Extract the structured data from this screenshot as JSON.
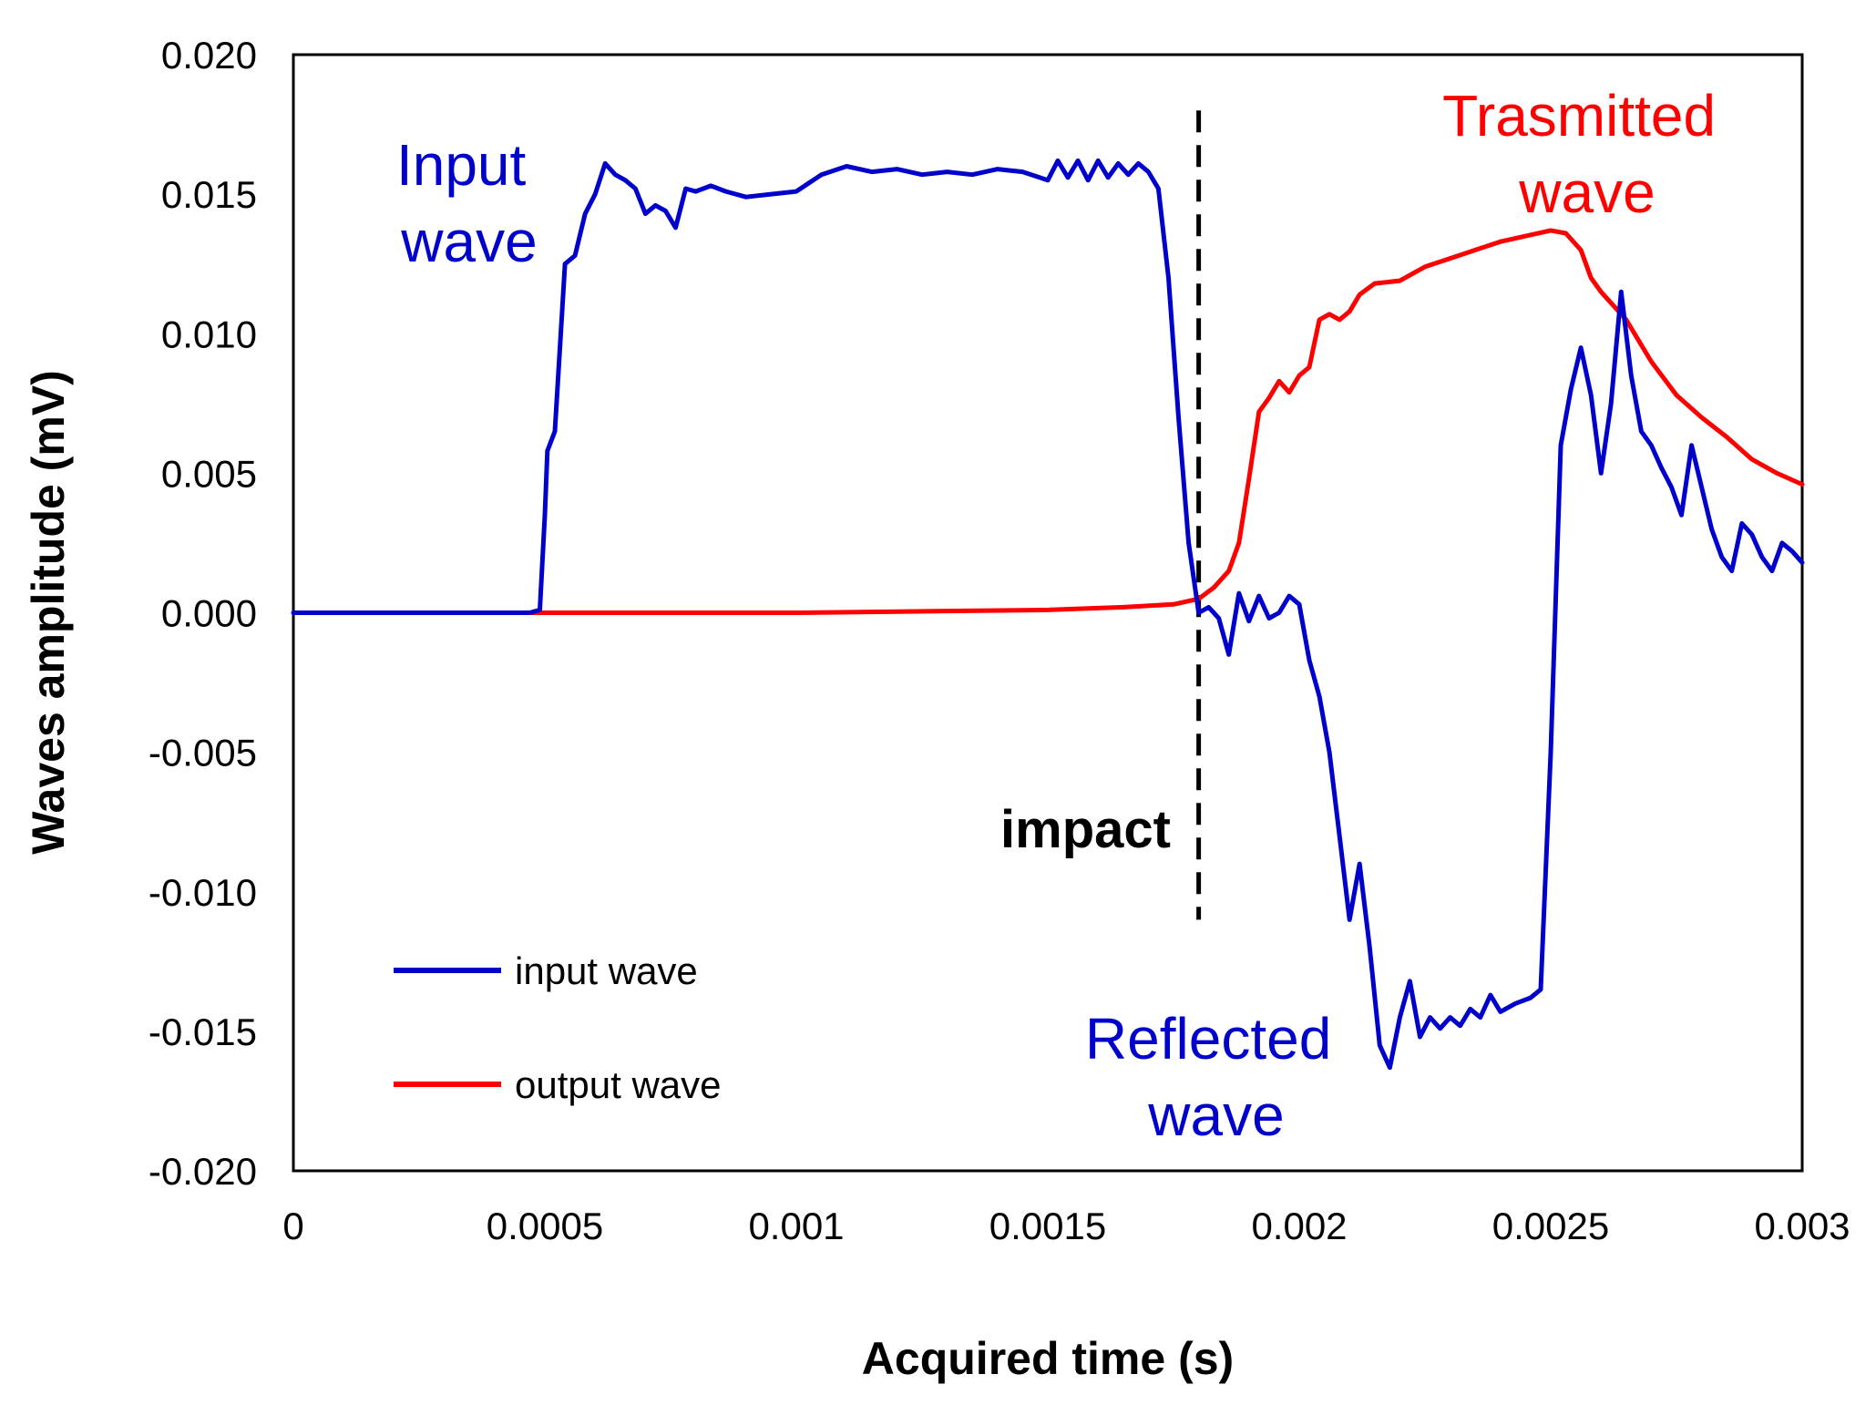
{
  "chart_data": {
    "type": "line",
    "xlabel": "Acquired time (s)",
    "ylabel": "Waves amplitude (mV)",
    "xlim": [
      0,
      0.003
    ],
    "ylim": [
      -0.02,
      0.02
    ],
    "x_ticks": [
      "0",
      "0.0005",
      "0.001",
      "0.0015",
      "0.002",
      "0.0025",
      "0.003"
    ],
    "y_ticks": [
      "0.020",
      "0.015",
      "0.010",
      "0.005",
      "0.000",
      "-0.005",
      "-0.010",
      "-0.015",
      "-0.020"
    ],
    "x_tick_values": [
      0,
      0.0005,
      0.001,
      0.0015,
      0.002,
      0.0025,
      0.003
    ],
    "y_tick_values": [
      0.02,
      0.015,
      0.01,
      0.005,
      0,
      -0.005,
      -0.01,
      -0.015,
      -0.02
    ],
    "grid": false,
    "legend_position": "bottom-left",
    "series": [
      {
        "name": "input wave",
        "color": "#0000CC",
        "points": [
          [
            0,
            0
          ],
          [
            0.00047,
            0
          ],
          [
            0.00049,
            0.0001
          ],
          [
            0.0005,
            0.0035
          ],
          [
            0.000505,
            0.0058
          ],
          [
            0.00052,
            0.0065
          ],
          [
            0.00054,
            0.0125
          ],
          [
            0.00056,
            0.0128
          ],
          [
            0.00058,
            0.0143
          ],
          [
            0.0006,
            0.015
          ],
          [
            0.00062,
            0.0161
          ],
          [
            0.00064,
            0.0157
          ],
          [
            0.00066,
            0.0155
          ],
          [
            0.00068,
            0.0152
          ],
          [
            0.0007,
            0.0143
          ],
          [
            0.00072,
            0.0146
          ],
          [
            0.00074,
            0.0144
          ],
          [
            0.00076,
            0.0138
          ],
          [
            0.00078,
            0.0152
          ],
          [
            0.0008,
            0.0151
          ],
          [
            0.00083,
            0.0153
          ],
          [
            0.00086,
            0.0151
          ],
          [
            0.0009,
            0.0149
          ],
          [
            0.00095,
            0.015
          ],
          [
            0.001,
            0.0151
          ],
          [
            0.00105,
            0.0157
          ],
          [
            0.0011,
            0.016
          ],
          [
            0.00115,
            0.0158
          ],
          [
            0.0012,
            0.0159
          ],
          [
            0.00125,
            0.0157
          ],
          [
            0.0013,
            0.0158
          ],
          [
            0.00135,
            0.0157
          ],
          [
            0.0014,
            0.0159
          ],
          [
            0.00145,
            0.0158
          ],
          [
            0.0015,
            0.0155
          ],
          [
            0.00152,
            0.0162
          ],
          [
            0.00154,
            0.0156
          ],
          [
            0.00156,
            0.0162
          ],
          [
            0.00158,
            0.0155
          ],
          [
            0.0016,
            0.0162
          ],
          [
            0.00162,
            0.0156
          ],
          [
            0.00164,
            0.0161
          ],
          [
            0.00166,
            0.0157
          ],
          [
            0.00168,
            0.0161
          ],
          [
            0.0017,
            0.0158
          ],
          [
            0.00172,
            0.0152
          ],
          [
            0.00174,
            0.012
          ],
          [
            0.00176,
            0.007
          ],
          [
            0.00178,
            0.0025
          ],
          [
            0.0018,
            0
          ],
          [
            0.00182,
            0.0002
          ],
          [
            0.00184,
            -0.0002
          ],
          [
            0.00186,
            -0.0015
          ],
          [
            0.00188,
            0.0007
          ],
          [
            0.0019,
            -0.0003
          ],
          [
            0.00192,
            0.0006
          ],
          [
            0.00194,
            -0.0002
          ],
          [
            0.00196,
            0
          ],
          [
            0.00198,
            0.0006
          ],
          [
            0.002,
            0.0003
          ],
          [
            0.00202,
            -0.0017
          ],
          [
            0.00204,
            -0.003
          ],
          [
            0.00206,
            -0.005
          ],
          [
            0.00208,
            -0.008
          ],
          [
            0.0021,
            -0.011
          ],
          [
            0.00212,
            -0.009
          ],
          [
            0.00214,
            -0.012
          ],
          [
            0.00216,
            -0.0155
          ],
          [
            0.00218,
            -0.0163
          ],
          [
            0.0022,
            -0.0145
          ],
          [
            0.00222,
            -0.0132
          ],
          [
            0.00224,
            -0.0152
          ],
          [
            0.00226,
            -0.0145
          ],
          [
            0.00228,
            -0.0149
          ],
          [
            0.0023,
            -0.0145
          ],
          [
            0.00232,
            -0.0148
          ],
          [
            0.00234,
            -0.0142
          ],
          [
            0.00236,
            -0.0145
          ],
          [
            0.00238,
            -0.0137
          ],
          [
            0.0024,
            -0.0143
          ],
          [
            0.00243,
            -0.014
          ],
          [
            0.00246,
            -0.0138
          ],
          [
            0.00248,
            -0.0135
          ],
          [
            0.0025,
            -0.005
          ],
          [
            0.00252,
            0.006
          ],
          [
            0.00254,
            0.008
          ],
          [
            0.00256,
            0.0095
          ],
          [
            0.00258,
            0.0078
          ],
          [
            0.0026,
            0.005
          ],
          [
            0.00262,
            0.0075
          ],
          [
            0.00264,
            0.0115
          ],
          [
            0.00266,
            0.0085
          ],
          [
            0.00268,
            0.0065
          ],
          [
            0.0027,
            0.006
          ],
          [
            0.00272,
            0.0052
          ],
          [
            0.00274,
            0.0045
          ],
          [
            0.00276,
            0.0035
          ],
          [
            0.00278,
            0.006
          ],
          [
            0.0028,
            0.0045
          ],
          [
            0.00282,
            0.003
          ],
          [
            0.00284,
            0.002
          ],
          [
            0.00286,
            0.0015
          ],
          [
            0.00288,
            0.0032
          ],
          [
            0.0029,
            0.0028
          ],
          [
            0.00292,
            0.002
          ],
          [
            0.00294,
            0.0015
          ],
          [
            0.00296,
            0.0025
          ],
          [
            0.00298,
            0.0022
          ],
          [
            0.003,
            0.0018
          ]
        ]
      },
      {
        "name": "output wave",
        "color": "#FF0000",
        "points": [
          [
            0,
            0
          ],
          [
            0.0005,
            0
          ],
          [
            0.001,
            0
          ],
          [
            0.0015,
            0.0001
          ],
          [
            0.00165,
            0.0002
          ],
          [
            0.00175,
            0.0003
          ],
          [
            0.0018,
            0.0005
          ],
          [
            0.00183,
            0.0009
          ],
          [
            0.00186,
            0.0015
          ],
          [
            0.00188,
            0.0025
          ],
          [
            0.0019,
            0.0048
          ],
          [
            0.00192,
            0.0072
          ],
          [
            0.00194,
            0.0077
          ],
          [
            0.00196,
            0.0083
          ],
          [
            0.00198,
            0.0079
          ],
          [
            0.002,
            0.0085
          ],
          [
            0.00202,
            0.0088
          ],
          [
            0.00204,
            0.0105
          ],
          [
            0.00206,
            0.0107
          ],
          [
            0.00208,
            0.0105
          ],
          [
            0.0021,
            0.0108
          ],
          [
            0.00212,
            0.0114
          ],
          [
            0.00215,
            0.0118
          ],
          [
            0.0022,
            0.0119
          ],
          [
            0.00225,
            0.0124
          ],
          [
            0.0023,
            0.0127
          ],
          [
            0.00235,
            0.013
          ],
          [
            0.0024,
            0.0133
          ],
          [
            0.00245,
            0.0135
          ],
          [
            0.0025,
            0.0137
          ],
          [
            0.00253,
            0.0136
          ],
          [
            0.00256,
            0.013
          ],
          [
            0.00258,
            0.012
          ],
          [
            0.0026,
            0.0115
          ],
          [
            0.00265,
            0.0105
          ],
          [
            0.0027,
            0.009
          ],
          [
            0.00275,
            0.0078
          ],
          [
            0.0028,
            0.007
          ],
          [
            0.00285,
            0.0063
          ],
          [
            0.0029,
            0.0055
          ],
          [
            0.00295,
            0.005
          ],
          [
            0.003,
            0.0046
          ]
        ]
      }
    ],
    "annotations": [
      {
        "text_lines": [
          "Input",
          "wave"
        ],
        "color": "#0000CC"
      },
      {
        "text_lines": [
          "Trasmitted",
          "wave"
        ],
        "color": "#FF0000"
      },
      {
        "text_lines": [
          "Reflected",
          "wave"
        ],
        "color": "#0000CC"
      },
      {
        "text": "impact",
        "color": "#000000"
      }
    ],
    "impact_line": {
      "x": 0.0018,
      "y_from": -0.011,
      "y_to": 0.018,
      "style": "dashed",
      "color": "#000000"
    }
  }
}
